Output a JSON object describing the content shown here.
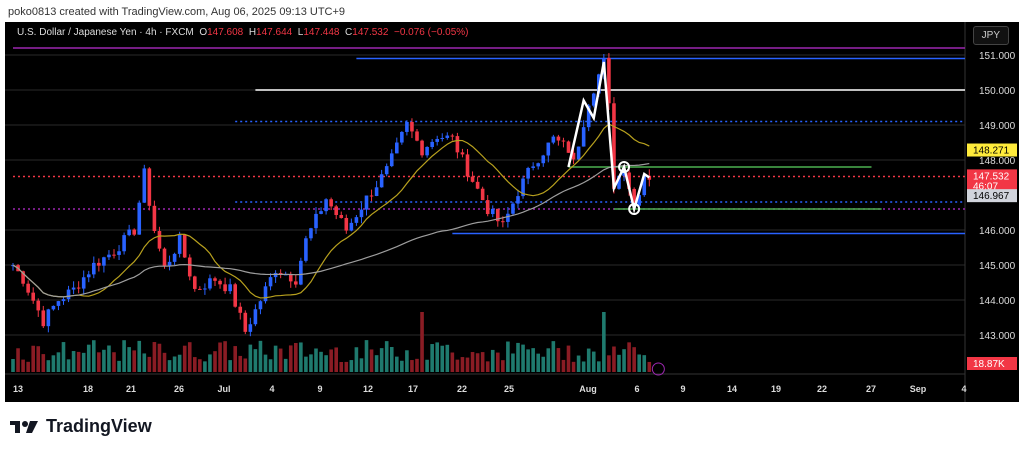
{
  "credit": "poko0813 created with TradingView.com, Aug 06, 2025 09:13 UTC+9",
  "legend": {
    "symbol": "U.S. Dollar / Japanese Yen · 4h · FXCM",
    "o_label": "O",
    "o": "147.608",
    "h_label": "H",
    "h": "147.644",
    "l_label": "L",
    "l": "147.448",
    "c_label": "C",
    "c": "147.532",
    "change": "−0.076 (−0.05%)"
  },
  "currency": "JPY",
  "brand": "TradingView",
  "colors": {
    "up": "#2962ff",
    "down": "#f23645",
    "ma_fast": "#b8a11e",
    "ma_slow": "#9e9e9e",
    "vol_up": "#1f7a6e",
    "vol_down": "#8a1c24"
  },
  "chart_data": {
    "type": "candlestick",
    "title": "U.S. Dollar / Japanese Yen · 4h · FXCM",
    "ylim": [
      142.5,
      151.5
    ],
    "y_ticks": [
      "151.000",
      "150.000",
      "149.000",
      "148.000",
      "146.000",
      "145.000",
      "144.000",
      "143.000"
    ],
    "y_tick_values": [
      151,
      150,
      149,
      148,
      146,
      145,
      144,
      143
    ],
    "x_ticks": [
      "13",
      "18",
      "21",
      "26",
      "Jul",
      "4",
      "9",
      "12",
      "17",
      "22",
      "25",
      "Aug",
      "6",
      "9",
      "14",
      "19",
      "22",
      "27",
      "Sep",
      "4"
    ],
    "price_path": [
      [
        0,
        145.0
      ],
      [
        2,
        144.6
      ],
      [
        6,
        143.4
      ],
      [
        9,
        144.0
      ],
      [
        12,
        144.3
      ],
      [
        16,
        145.0
      ],
      [
        20,
        145.4
      ],
      [
        24,
        146.0
      ],
      [
        26,
        147.6
      ],
      [
        28,
        146.0
      ],
      [
        30,
        144.9
      ],
      [
        33,
        145.7
      ],
      [
        36,
        144.3
      ],
      [
        40,
        144.6
      ],
      [
        43,
        144.3
      ],
      [
        46,
        143.1
      ],
      [
        49,
        144.0
      ],
      [
        52,
        144.9
      ],
      [
        56,
        144.6
      ],
      [
        58,
        145.7
      ],
      [
        62,
        146.9
      ],
      [
        66,
        146.0
      ],
      [
        70,
        146.9
      ],
      [
        74,
        147.7
      ],
      [
        78,
        149.0
      ],
      [
        81,
        148.3
      ],
      [
        84,
        148.7
      ],
      [
        87,
        148.6
      ],
      [
        90,
        147.7
      ],
      [
        94,
        146.6
      ],
      [
        97,
        146.1
      ],
      [
        100,
        147.1
      ],
      [
        103,
        147.9
      ],
      [
        107,
        148.6
      ],
      [
        110,
        148.3
      ],
      [
        111,
        147.9
      ],
      [
        114,
        149.7
      ],
      [
        117,
        150.8
      ],
      [
        118,
        149.5
      ],
      [
        119,
        147.3
      ],
      [
        121,
        147.8
      ],
      [
        123,
        146.7
      ],
      [
        125,
        147.6
      ],
      [
        126,
        147.53
      ]
    ],
    "price_labels": [
      {
        "text": "148.271",
        "value": 148.271,
        "bg": "#ffeb3b",
        "fg": "#000"
      },
      {
        "text": "147.532",
        "sub": "46:07",
        "value": 147.532,
        "bg": "#f23645",
        "fg": "#fff"
      },
      {
        "text": "146.967",
        "value": 146.967,
        "bg": "#d1d4dc",
        "fg": "#000"
      }
    ],
    "volume_label": "18.87K",
    "levels": [
      {
        "value": 151.2,
        "color": "#9c27b0",
        "style": "solid",
        "from": 0
      },
      {
        "value": 150.9,
        "color": "#2962ff",
        "style": "solid",
        "from": 68
      },
      {
        "value": 150.0,
        "color": "#ffffff",
        "style": "solid",
        "from": 48
      },
      {
        "value": 149.1,
        "color": "#2962ff",
        "style": "dotted",
        "from": 44
      },
      {
        "value": 147.8,
        "color": "#4caf50",
        "style": "solid",
        "from": 110,
        "to": 170
      },
      {
        "value": 147.53,
        "color": "#f23645",
        "style": "dotted",
        "from": 0
      },
      {
        "value": 146.8,
        "color": "#2962ff",
        "style": "dotted",
        "from": 44
      },
      {
        "value": 146.6,
        "color": "#9c27b0",
        "style": "dotted",
        "from": 0
      },
      {
        "value": 146.6,
        "color": "#4caf50",
        "style": "solid",
        "from": 119,
        "to": 172
      },
      {
        "value": 145.9,
        "color": "#2962ff",
        "style": "solid",
        "from": 87
      }
    ],
    "zigzag": [
      [
        110,
        147.8
      ],
      [
        113,
        149.7
      ],
      [
        115,
        149.2
      ],
      [
        117,
        150.8
      ],
      [
        119,
        147.2
      ],
      [
        121,
        147.8
      ],
      [
        123,
        146.6
      ],
      [
        125,
        147.6
      ],
      [
        126,
        147.5
      ]
    ],
    "circles": [
      [
        121,
        147.8
      ],
      [
        123,
        146.6
      ]
    ]
  }
}
